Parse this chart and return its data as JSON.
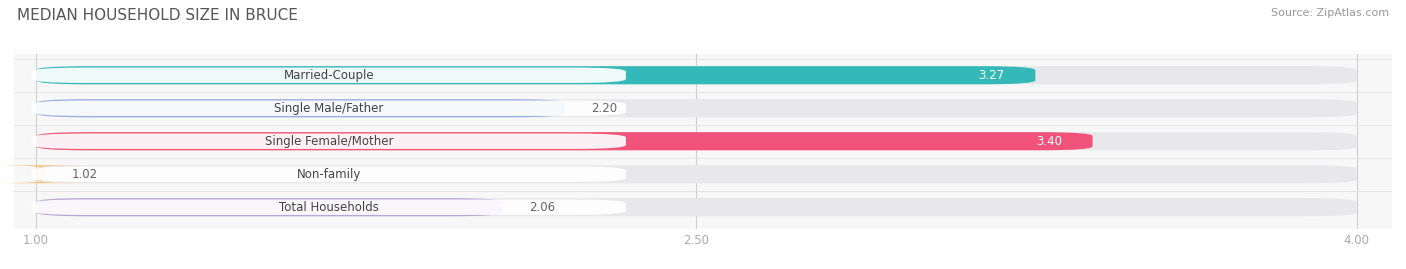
{
  "title": "MEDIAN HOUSEHOLD SIZE IN BRUCE",
  "source": "Source: ZipAtlas.com",
  "categories": [
    "Married-Couple",
    "Single Male/Father",
    "Single Female/Mother",
    "Non-family",
    "Total Households"
  ],
  "values": [
    3.27,
    2.2,
    3.4,
    1.02,
    2.06
  ],
  "bar_colors": [
    "#35b8b8",
    "#9baee0",
    "#f0527a",
    "#f5c98a",
    "#b8a8d5"
  ],
  "label_values": [
    "3.27",
    "2.20",
    "3.40",
    "1.02",
    "2.06"
  ],
  "value_inside": [
    true,
    false,
    true,
    false,
    false
  ],
  "xmin": 1.0,
  "xmax": 4.0,
  "xticks": [
    1.0,
    2.5,
    4.0
  ],
  "background_color": "#f7f7f7",
  "bar_background_color": "#e8e8ea",
  "title_fontsize": 11,
  "source_fontsize": 8,
  "label_fontsize": 8.5,
  "value_fontsize": 8.5,
  "tick_fontsize": 8.5
}
